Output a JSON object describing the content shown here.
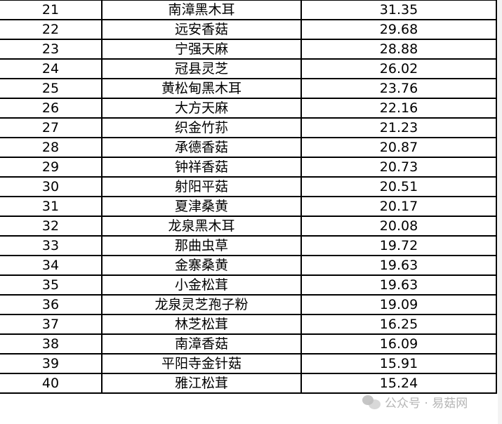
{
  "table": {
    "rows": [
      {
        "rank": "21",
        "name": "南漳黑木耳",
        "value": "31.35"
      },
      {
        "rank": "22",
        "name": "远安香菇",
        "value": "29.68"
      },
      {
        "rank": "23",
        "name": "宁强天麻",
        "value": "28.88"
      },
      {
        "rank": "24",
        "name": "冠县灵芝",
        "value": "26.02"
      },
      {
        "rank": "25",
        "name": "黄松甸黑木耳",
        "value": "23.76"
      },
      {
        "rank": "26",
        "name": "大方天麻",
        "value": "22.16"
      },
      {
        "rank": "27",
        "name": "织金竹荪",
        "value": "21.23"
      },
      {
        "rank": "28",
        "name": "承德香菇",
        "value": "20.87"
      },
      {
        "rank": "29",
        "name": "钟祥香菇",
        "value": "20.73"
      },
      {
        "rank": "30",
        "name": "射阳平菇",
        "value": "20.51"
      },
      {
        "rank": "31",
        "name": "夏津桑黄",
        "value": "20.17"
      },
      {
        "rank": "32",
        "name": "龙泉黑木耳",
        "value": "20.08"
      },
      {
        "rank": "33",
        "name": "那曲虫草",
        "value": "19.72"
      },
      {
        "rank": "34",
        "name": "金寨桑黄",
        "value": "19.63"
      },
      {
        "rank": "35",
        "name": "小金松茸",
        "value": "19.63"
      },
      {
        "rank": "36",
        "name": "龙泉灵芝孢子粉",
        "value": "19.09"
      },
      {
        "rank": "37",
        "name": "林芝松茸",
        "value": "16.25"
      },
      {
        "rank": "38",
        "name": "南漳香菇",
        "value": "16.09"
      },
      {
        "rank": "39",
        "name": "平阳寺金针菇",
        "value": "15.91"
      },
      {
        "rank": "40",
        "name": "雅江松茸",
        "value": "15.24"
      }
    ]
  },
  "watermark": {
    "text": "公众号 · 易菇网",
    "icon": "wechat-icon"
  }
}
